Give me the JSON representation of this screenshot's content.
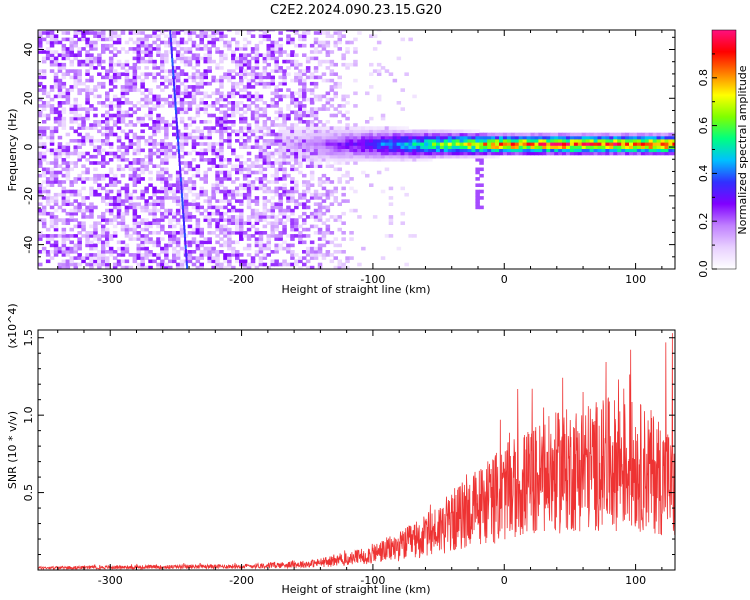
{
  "title": "C2E2.2024.090.23.15.G20",
  "chart_data": [
    {
      "type": "heatmap",
      "xlabel": "Height of straight line (km)",
      "ylabel": "Frequency (Hz)",
      "xlim": [
        -355,
        130
      ],
      "ylim": [
        -50,
        48
      ],
      "x_ticks": [
        -300,
        -200,
        -100,
        0,
        100
      ],
      "x_tick_labels": [
        "-300",
        "-200",
        "-100",
        "0",
        "100"
      ],
      "y_ticks": [
        -40,
        -20,
        0,
        20,
        40
      ],
      "y_tick_labels": [
        "-40",
        "-20",
        "0",
        "20",
        "40"
      ],
      "colorbar": {
        "label": "Normalized spectral amplitude",
        "range": [
          0,
          1
        ],
        "ticks": [
          0.0,
          0.2,
          0.4,
          0.6,
          0.8
        ],
        "tick_labels": [
          "0.0",
          "0.2",
          "0.4",
          "0.6",
          "0.8"
        ],
        "colors": [
          "#ffffff",
          "#e8d0ff",
          "#c080ff",
          "#8000ff",
          "#3030ff",
          "#00c0ff",
          "#00ff80",
          "#80ff00",
          "#ffff00",
          "#ff8000",
          "#ff0000",
          "#ff1080"
        ]
      },
      "features": [
        {
          "name": "scattered noise",
          "x_range": [
            -355,
            -120
          ],
          "freq_range": [
            -50,
            48
          ],
          "amplitude": 0.15
        },
        {
          "name": "diagonal streak",
          "x_start": -255,
          "x_end": -242,
          "freq_start": 48,
          "freq_end": -50,
          "amplitude": 0.25
        },
        {
          "name": "signal band",
          "x_range": [
            -120,
            130
          ],
          "center_freq": 0,
          "amplitude_peak": 0.95
        }
      ]
    },
    {
      "type": "line",
      "xlabel": "Height of straight line (km)",
      "ylabel": "SNR (10 * v/v)",
      "y_multiplier": "(x10^4)",
      "xlim": [
        -355,
        130
      ],
      "ylim": [
        0,
        15500
      ],
      "x_ticks": [
        -300,
        -200,
        -100,
        0,
        100
      ],
      "x_tick_labels": [
        "-300",
        "-200",
        "-100",
        "0",
        "100"
      ],
      "y_ticks": [
        5000,
        10000,
        15000
      ],
      "y_tick_labels": [
        "0.5",
        "1.0",
        "1.5"
      ],
      "color": "#ee3333",
      "envelope": {
        "x": [
          -355,
          -300,
          -200,
          -150,
          -120,
          -100,
          -80,
          -60,
          -40,
          -20,
          0,
          20,
          40,
          60,
          80,
          100,
          115,
          125,
          130
        ],
        "y": [
          150,
          180,
          250,
          400,
          700,
          1100,
          1600,
          2300,
          3300,
          4300,
          5200,
          6000,
          6600,
          7000,
          7200,
          7100,
          6600,
          6000,
          5000
        ]
      },
      "spikes": [
        {
          "x": -3,
          "y": 9700
        },
        {
          "x": 60,
          "y": 11500
        },
        {
          "x": 87,
          "y": 12300
        },
        {
          "x": 123,
          "y": 14700
        },
        {
          "x": 128,
          "y": 15300
        }
      ]
    }
  ]
}
